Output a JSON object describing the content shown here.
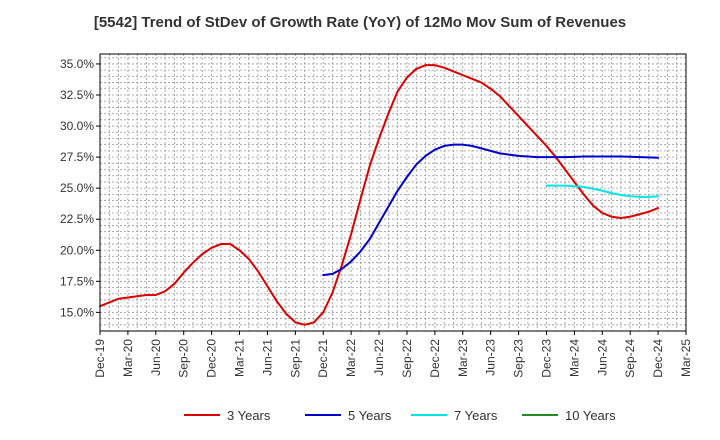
{
  "chart_data": {
    "type": "line",
    "title": "[5542]  Trend of StDev of Growth Rate (YoY) of 12Mo Mov Sum of Revenues",
    "xlabel": "",
    "ylabel": "",
    "ylim": [
      13.5,
      35.8
    ],
    "y_ticks": [
      15.0,
      17.5,
      20.0,
      22.5,
      25.0,
      27.5,
      30.0,
      32.5,
      35.0
    ],
    "y_tick_labels": [
      "15.0%",
      "17.5%",
      "20.0%",
      "22.5%",
      "25.0%",
      "27.5%",
      "30.0%",
      "32.5%",
      "35.0%"
    ],
    "x_tick_labels": [
      "Dec-19",
      "Mar-20",
      "Jun-20",
      "Sep-20",
      "Dec-20",
      "Mar-21",
      "Jun-21",
      "Sep-21",
      "Dec-21",
      "Mar-22",
      "Jun-22",
      "Sep-22",
      "Dec-22",
      "Mar-23",
      "Jun-23",
      "Sep-23",
      "Dec-23",
      "Mar-24",
      "Jun-24",
      "Sep-24",
      "Dec-24",
      "Mar-25"
    ],
    "x_months_note": "x values are month offsets from Dec-19",
    "series": [
      {
        "name": "3 Years",
        "color": "#dd0000",
        "x": [
          0,
          1,
          2,
          3,
          4,
          5,
          6,
          7,
          8,
          9,
          10,
          11,
          12,
          13,
          14,
          15,
          16,
          17,
          18,
          19,
          20,
          21,
          22,
          23,
          24,
          25,
          26,
          27,
          28,
          29,
          30,
          31,
          32,
          33,
          34,
          35,
          36,
          37,
          38,
          39,
          40,
          41,
          42,
          43,
          44,
          45,
          46,
          47,
          48,
          49,
          50,
          51,
          52,
          53,
          54,
          55,
          56,
          57,
          58,
          59,
          60
        ],
        "values": [
          15.5,
          15.8,
          16.1,
          16.2,
          16.3,
          16.4,
          16.4,
          16.7,
          17.3,
          18.2,
          19.0,
          19.7,
          20.2,
          20.5,
          20.5,
          20.0,
          19.3,
          18.3,
          17.1,
          15.9,
          14.9,
          14.2,
          14.0,
          14.2,
          15.0,
          16.6,
          18.8,
          21.3,
          24.1,
          26.8,
          29.0,
          31.0,
          32.8,
          33.9,
          34.6,
          34.9,
          34.9,
          34.7,
          34.4,
          34.1,
          33.8,
          33.5,
          33.0,
          32.4,
          31.6,
          30.8,
          30.0,
          29.2,
          28.4,
          27.5,
          26.5,
          25.5,
          24.5,
          23.6,
          23.0,
          22.7,
          22.6,
          22.7,
          22.9,
          23.1,
          23.4
        ]
      },
      {
        "name": "5 Years",
        "color": "#0000cc",
        "x": [
          24,
          25,
          26,
          27,
          28,
          29,
          30,
          31,
          32,
          33,
          34,
          35,
          36,
          37,
          38,
          39,
          40,
          41,
          42,
          43,
          44,
          45,
          46,
          47,
          48,
          49,
          50,
          51,
          52,
          53,
          54,
          55,
          56,
          57,
          58,
          59,
          60
        ],
        "values": [
          18.0,
          18.1,
          18.5,
          19.1,
          19.9,
          20.9,
          22.2,
          23.5,
          24.8,
          25.9,
          26.9,
          27.6,
          28.1,
          28.4,
          28.5,
          28.5,
          28.4,
          28.2,
          28.0,
          27.8,
          27.7,
          27.6,
          27.55,
          27.5,
          27.5,
          27.5,
          27.5,
          27.52,
          27.55,
          27.55,
          27.55,
          27.55,
          27.55,
          27.53,
          27.5,
          27.48,
          27.45
        ]
      },
      {
        "name": "7 Years",
        "color": "#00e5e5",
        "x": [
          48,
          49,
          50,
          51,
          52,
          53,
          54,
          55,
          56,
          57,
          58,
          59,
          60
        ],
        "values": [
          25.2,
          25.2,
          25.2,
          25.15,
          25.1,
          24.95,
          24.8,
          24.6,
          24.45,
          24.35,
          24.3,
          24.3,
          24.35
        ]
      },
      {
        "name": "10 Years",
        "color": "#228b22",
        "x": [],
        "values": []
      }
    ],
    "legend": [
      {
        "label": "3 Years",
        "color": "#dd0000"
      },
      {
        "label": "5 Years",
        "color": "#0000cc"
      },
      {
        "label": "7 Years",
        "color": "#00e5e5"
      },
      {
        "label": "10 Years",
        "color": "#228b22"
      }
    ],
    "legend_placement": "bottom",
    "grid": true
  }
}
